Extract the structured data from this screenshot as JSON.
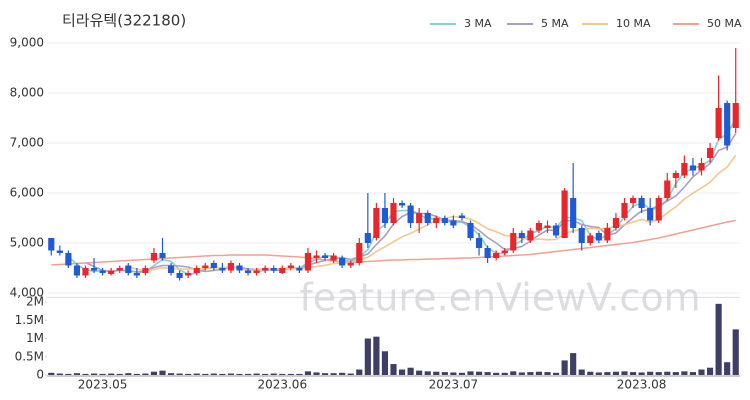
{
  "chart_data": [
    {
      "type": "candlestick",
      "title": "티라유텍(322180)",
      "watermark": "feature.enViewV.com",
      "up_color": "#e8262c",
      "down_color": "#1f5bd7",
      "grid": true,
      "legend": "top-right",
      "ylim": [
        3920,
        9160
      ],
      "yticks": [
        {
          "value": 4000,
          "label": "4,000"
        },
        {
          "value": 5000,
          "label": "5,000"
        },
        {
          "value": 6000,
          "label": "6,000"
        },
        {
          "value": 7000,
          "label": "7,000"
        },
        {
          "value": 8000,
          "label": "8,000"
        },
        {
          "value": 9000,
          "label": "9,000"
        }
      ],
      "open": [
        5100,
        4850,
        4800,
        4550,
        4350,
        4500,
        4450,
        4380,
        4450,
        4550,
        4400,
        4400,
        4650,
        4800,
        4550,
        4400,
        4350,
        4400,
        4500,
        4600,
        4500,
        4450,
        4550,
        4450,
        4400,
        4450,
        4500,
        4400,
        4500,
        4500,
        4450,
        4700,
        4750,
        4650,
        4700,
        4550,
        4600,
        5200,
        5100,
        5700,
        5400,
        5800,
        5750,
        5400,
        5600,
        5400,
        5500,
        5450,
        5550,
        5400,
        5100,
        4900,
        4700,
        4800,
        4850,
        5200,
        5050,
        5250,
        5300,
        5350,
        5100,
        5900,
        5300,
        5000,
        5200,
        5050,
        5300,
        5500,
        5800,
        5900,
        5700,
        5450,
        5900,
        6300,
        6350,
        6550,
        6450,
        6700,
        7100,
        7800,
        7300
      ],
      "high": [
        5100,
        4950,
        4850,
        4600,
        4550,
        4700,
        4500,
        4500,
        4550,
        4600,
        4500,
        4550,
        4900,
        5100,
        4600,
        4450,
        4450,
        4550,
        4600,
        4650,
        4600,
        4650,
        4600,
        4500,
        4500,
        4550,
        4550,
        4550,
        4600,
        4550,
        4900,
        4850,
        4800,
        4800,
        4750,
        4650,
        5100,
        6000,
        5800,
        6000,
        5900,
        5850,
        5800,
        5700,
        5650,
        5550,
        5550,
        5550,
        5600,
        5450,
        5200,
        4950,
        4850,
        4900,
        5300,
        5250,
        5300,
        5450,
        5450,
        5400,
        6100,
        6600,
        5350,
        5200,
        5250,
        5400,
        5600,
        5900,
        5950,
        5950,
        5900,
        5950,
        6400,
        6450,
        6750,
        6700,
        6700,
        7000,
        8350,
        7850,
        8900
      ],
      "low": [
        4750,
        4750,
        4500,
        4300,
        4300,
        4400,
        4350,
        4350,
        4400,
        4350,
        4300,
        4350,
        4600,
        4650,
        4350,
        4250,
        4300,
        4350,
        4450,
        4450,
        4400,
        4400,
        4400,
        4350,
        4350,
        4400,
        4400,
        4380,
        4450,
        4400,
        4400,
        4600,
        4650,
        4600,
        4500,
        4500,
        4550,
        4900,
        5050,
        5300,
        5350,
        5700,
        5300,
        5200,
        5350,
        5300,
        5350,
        5300,
        5450,
        5050,
        4750,
        4600,
        4650,
        4750,
        4800,
        5000,
        5000,
        5200,
        5200,
        5100,
        5100,
        5200,
        4850,
        4950,
        5000,
        5000,
        5250,
        5450,
        5700,
        5600,
        5350,
        5400,
        5850,
        6100,
        6300,
        6350,
        6350,
        6600,
        7050,
        6850,
        7200
      ],
      "close": [
        4850,
        4800,
        4550,
        4350,
        4500,
        4450,
        4400,
        4450,
        4500,
        4400,
        4350,
        4500,
        4800,
        4700,
        4400,
        4300,
        4400,
        4500,
        4550,
        4500,
        4450,
        4600,
        4450,
        4400,
        4450,
        4500,
        4450,
        4500,
        4550,
        4450,
        4800,
        4750,
        4700,
        4750,
        4550,
        4600,
        5000,
        5000,
        5700,
        5400,
        5800,
        5750,
        5400,
        5600,
        5400,
        5500,
        5400,
        5350,
        5500,
        5100,
        4900,
        4700,
        4800,
        4850,
        5200,
        5100,
        5250,
        5400,
        5350,
        5150,
        6050,
        5300,
        5000,
        5150,
        5050,
        5300,
        5500,
        5800,
        5900,
        5700,
        5450,
        5900,
        6250,
        6400,
        6600,
        6450,
        6600,
        6900,
        7700,
        6950,
        7800
      ],
      "series": [
        {
          "name": "3 MA",
          "color": "#7fd3d6",
          "values": [
            null,
            null,
            4733,
            4567,
            4467,
            4433,
            4450,
            4433,
            4450,
            4450,
            4417,
            4417,
            4550,
            4667,
            4633,
            4467,
            4367,
            4400,
            4483,
            4517,
            4500,
            4533,
            4500,
            4483,
            4433,
            4450,
            4467,
            4483,
            4500,
            4500,
            4600,
            4667,
            4750,
            4733,
            4667,
            4633,
            4717,
            4867,
            5233,
            5367,
            5633,
            5650,
            5650,
            5583,
            5467,
            5500,
            5433,
            5417,
            5417,
            5317,
            5167,
            4900,
            4800,
            4783,
            4950,
            5050,
            5183,
            5250,
            5333,
            5300,
            5517,
            5500,
            5450,
            5150,
            5067,
            5167,
            5283,
            5533,
            5733,
            5800,
            5683,
            5683,
            5867,
            6183,
            6417,
            6483,
            6550,
            6650,
            7067,
            7183,
            7483
          ]
        },
        {
          "name": "5 MA",
          "color": "#a89ec9",
          "values": [
            null,
            null,
            null,
            null,
            4610,
            4530,
            4450,
            4430,
            4460,
            4440,
            4420,
            4440,
            4510,
            4550,
            4550,
            4540,
            4520,
            4460,
            4430,
            4450,
            4480,
            4520,
            4510,
            4480,
            4470,
            4480,
            4450,
            4460,
            4490,
            4490,
            4550,
            4610,
            4650,
            4690,
            4710,
            4670,
            4720,
            4780,
            4970,
            5140,
            5380,
            5530,
            5610,
            5590,
            5590,
            5530,
            5460,
            5450,
            5430,
            5370,
            5250,
            5110,
            5000,
            4870,
            4890,
            4930,
            5040,
            5160,
            5260,
            5250,
            5440,
            5450,
            5370,
            5330,
            5310,
            5160,
            5200,
            5360,
            5510,
            5640,
            5670,
            5750,
            5840,
            5940,
            6120,
            6320,
            6460,
            6590,
            6850,
            6920,
            7190
          ]
        },
        {
          "name": "10 MA",
          "color": "#f2c88a",
          "values": [
            null,
            null,
            null,
            null,
            null,
            null,
            null,
            null,
            null,
            4525,
            4475,
            4445,
            4470,
            4505,
            4495,
            4480,
            4480,
            4485,
            4490,
            4500,
            4510,
            4520,
            4485,
            4455,
            4460,
            4480,
            4485,
            4485,
            4485,
            4480,
            4515,
            4530,
            4555,
            4590,
            4600,
            4610,
            4665,
            4715,
            4830,
            4925,
            5025,
            5125,
            5195,
            5280,
            5365,
            5455,
            5495,
            5530,
            5510,
            5480,
            5390,
            5285,
            5225,
            5150,
            5130,
            5090,
            5075,
            5080,
            5065,
            5070,
            5185,
            5245,
            5265,
            5295,
            5280,
            5300,
            5325,
            5365,
            5420,
            5475,
            5415,
            5475,
            5600,
            5725,
            5880,
            5995,
            6105,
            6215,
            6395,
            6520,
            6755
          ]
        },
        {
          "name": "50 MA",
          "color": "#f4a090",
          "values": [
            4560,
            4570,
            4580,
            4590,
            4600,
            4610,
            4620,
            4630,
            4640,
            4650,
            4660,
            4670,
            4680,
            4690,
            4700,
            4710,
            4720,
            4730,
            4740,
            4750,
            4750,
            4760,
            4760,
            4760,
            4760,
            4760,
            4750,
            4740,
            4730,
            4720,
            4700,
            4680,
            4660,
            4640,
            4620,
            4610,
            4620,
            4630,
            4640,
            4650,
            4660,
            4660,
            4670,
            4670,
            4680,
            4680,
            4690,
            4690,
            4700,
            4700,
            4710,
            4720,
            4730,
            4740,
            4750,
            4760,
            4770,
            4790,
            4810,
            4830,
            4850,
            4870,
            4890,
            4910,
            4930,
            4950,
            4970,
            4990,
            5010,
            5040,
            5070,
            5100,
            5140,
            5180,
            5220,
            5260,
            5300,
            5340,
            5380,
            5420,
            5450
          ]
        }
      ]
    },
    {
      "type": "bar",
      "color": "#3d3f66",
      "categories": [
        null,
        null,
        null,
        null,
        null,
        null,
        "2023.05",
        null,
        null,
        null,
        null,
        null,
        null,
        null,
        null,
        null,
        null,
        null,
        null,
        null,
        null,
        null,
        null,
        null,
        null,
        null,
        null,
        "2023.06",
        null,
        null,
        null,
        null,
        null,
        null,
        null,
        null,
        null,
        null,
        null,
        null,
        null,
        null,
        null,
        null,
        null,
        null,
        null,
        "2023.07",
        null,
        null,
        null,
        null,
        null,
        null,
        null,
        null,
        null,
        null,
        null,
        null,
        null,
        null,
        null,
        null,
        null,
        null,
        null,
        null,
        null,
        "2023.08",
        null,
        null,
        null,
        null,
        null,
        null,
        null,
        null,
        null,
        null,
        null
      ],
      "values": [
        60000,
        40000,
        30000,
        50000,
        30000,
        40000,
        30000,
        40000,
        30000,
        50000,
        30000,
        40000,
        90000,
        120000,
        50000,
        40000,
        30000,
        40000,
        30000,
        40000,
        30000,
        40000,
        30000,
        30000,
        40000,
        30000,
        40000,
        30000,
        30000,
        30000,
        100000,
        70000,
        50000,
        50000,
        60000,
        40000,
        150000,
        1000000,
        1050000,
        650000,
        300000,
        150000,
        200000,
        120000,
        100000,
        90000,
        80000,
        70000,
        60000,
        100000,
        90000,
        80000,
        60000,
        60000,
        100000,
        70000,
        80000,
        90000,
        80000,
        60000,
        400000,
        600000,
        150000,
        90000,
        70000,
        80000,
        90000,
        100000,
        80000,
        70000,
        90000,
        80000,
        90000,
        80000,
        100000,
        80000,
        150000,
        200000,
        1950000,
        350000,
        1250000
      ],
      "ylim": [
        0,
        2100000
      ],
      "yticks": [
        0,
        {
          "value": 500000,
          "label": "0.5M"
        },
        {
          "value": 1000000,
          "label": "1M"
        },
        {
          "value": 1500000,
          "label": "1.5M"
        },
        {
          "value": 2000000,
          "label": "2M"
        }
      ]
    }
  ]
}
